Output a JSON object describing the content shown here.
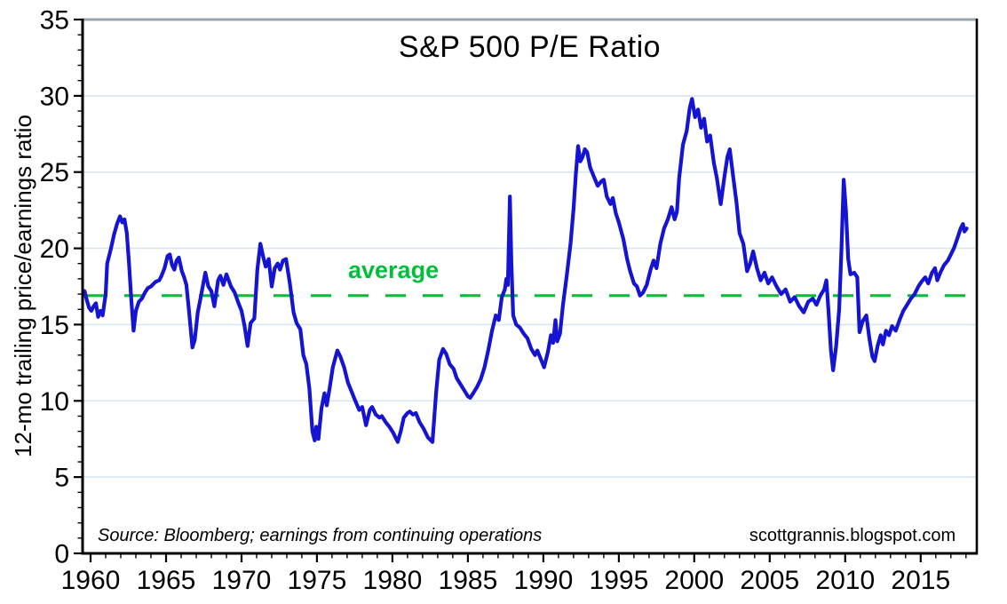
{
  "chart_data": {
    "type": "line",
    "title": "S&P 500 P/E Ratio",
    "ylabel": "12-mo trailing price/earnings ratio",
    "xlabel": "",
    "x_range": [
      1959.47,
      2018.72
    ],
    "y_range": [
      0,
      35
    ],
    "x_ticks_major": [
      1960,
      1965,
      1970,
      1975,
      1980,
      1985,
      1990,
      1995,
      2000,
      2005,
      2010,
      2015
    ],
    "y_ticks_major": [
      0,
      5,
      10,
      15,
      20,
      25,
      30,
      35
    ],
    "x_minor_ticks": {
      "start": 1960,
      "end": 2018,
      "step": 1
    },
    "y_minor_ticks": {
      "start": 0,
      "end": 35,
      "step": 1
    },
    "grid_y_values": [
      5,
      10,
      15,
      20,
      25,
      30
    ],
    "grid": "horizontal-only",
    "legend": "none",
    "average_line": {
      "value": 16.9,
      "label": "average",
      "style": "dashed"
    },
    "annotations": {
      "source": "Source: Bloomberg; earnings from continuing operations",
      "website": "scottgrannis.blogspot.com"
    },
    "colors": {
      "line": "#1414d2",
      "average": "#00c03a",
      "grid": "#d6e6f2",
      "frame": "#000000",
      "frame_top": "#98a7b0",
      "text": "#000000",
      "background": "#ffffff"
    },
    "series": [
      {
        "name": "S&P 500 12-mo trailing P/E ratio",
        "color": "#1414d2",
        "points": [
          [
            1959.6,
            17.2
          ],
          [
            1959.75,
            16.6
          ],
          [
            1959.9,
            16.1
          ],
          [
            1960.05,
            15.9
          ],
          [
            1960.2,
            16.2
          ],
          [
            1960.35,
            16.4
          ],
          [
            1960.5,
            15.5
          ],
          [
            1960.65,
            15.9
          ],
          [
            1960.8,
            15.6
          ],
          [
            1961.0,
            17.0
          ],
          [
            1961.1,
            19.0
          ],
          [
            1961.35,
            20.0
          ],
          [
            1961.55,
            20.9
          ],
          [
            1961.75,
            21.6
          ],
          [
            1961.95,
            22.1
          ],
          [
            1962.1,
            21.7
          ],
          [
            1962.25,
            21.9
          ],
          [
            1962.4,
            21.0
          ],
          [
            1962.55,
            19.0
          ],
          [
            1962.7,
            16.6
          ],
          [
            1962.85,
            14.6
          ],
          [
            1963.0,
            15.9
          ],
          [
            1963.2,
            16.5
          ],
          [
            1963.4,
            16.7
          ],
          [
            1963.6,
            17.1
          ],
          [
            1963.8,
            17.4
          ],
          [
            1964.0,
            17.5
          ],
          [
            1964.3,
            17.8
          ],
          [
            1964.55,
            17.9
          ],
          [
            1964.7,
            18.2
          ],
          [
            1964.9,
            18.7
          ],
          [
            1965.1,
            19.5
          ],
          [
            1965.25,
            19.6
          ],
          [
            1965.4,
            18.9
          ],
          [
            1965.55,
            18.6
          ],
          [
            1965.7,
            19.2
          ],
          [
            1965.85,
            19.4
          ],
          [
            1966.05,
            18.5
          ],
          [
            1966.2,
            18.1
          ],
          [
            1966.35,
            17.6
          ],
          [
            1966.5,
            16.1
          ],
          [
            1966.75,
            13.5
          ],
          [
            1966.9,
            14.0
          ],
          [
            1967.1,
            15.8
          ],
          [
            1967.3,
            16.8
          ],
          [
            1967.6,
            18.4
          ],
          [
            1967.8,
            17.5
          ],
          [
            1968.0,
            17.2
          ],
          [
            1968.2,
            16.2
          ],
          [
            1968.45,
            17.9
          ],
          [
            1968.6,
            18.2
          ],
          [
            1968.8,
            17.6
          ],
          [
            1969.0,
            18.3
          ],
          [
            1969.3,
            17.5
          ],
          [
            1969.55,
            17.1
          ],
          [
            1969.8,
            16.4
          ],
          [
            1970.0,
            15.9
          ],
          [
            1970.2,
            14.9
          ],
          [
            1970.4,
            13.6
          ],
          [
            1970.6,
            15.1
          ],
          [
            1970.85,
            15.4
          ],
          [
            1971.05,
            18.6
          ],
          [
            1971.25,
            20.3
          ],
          [
            1971.45,
            19.4
          ],
          [
            1971.6,
            18.8
          ],
          [
            1971.8,
            19.3
          ],
          [
            1972.0,
            17.5
          ],
          [
            1972.2,
            18.7
          ],
          [
            1972.4,
            19.0
          ],
          [
            1972.55,
            18.6
          ],
          [
            1972.75,
            19.2
          ],
          [
            1972.95,
            19.3
          ],
          [
            1973.2,
            17.7
          ],
          [
            1973.45,
            15.8
          ],
          [
            1973.65,
            15.1
          ],
          [
            1973.9,
            14.7
          ],
          [
            1974.1,
            13.0
          ],
          [
            1974.3,
            12.4
          ],
          [
            1974.5,
            10.8
          ],
          [
            1974.7,
            8.0
          ],
          [
            1974.85,
            7.4
          ],
          [
            1974.95,
            8.3
          ],
          [
            1975.1,
            7.5
          ],
          [
            1975.3,
            9.5
          ],
          [
            1975.5,
            10.5
          ],
          [
            1975.65,
            9.7
          ],
          [
            1975.85,
            10.9
          ],
          [
            1976.05,
            12.2
          ],
          [
            1976.35,
            13.3
          ],
          [
            1976.55,
            12.9
          ],
          [
            1976.8,
            12.2
          ],
          [
            1977.05,
            11.2
          ],
          [
            1977.3,
            10.6
          ],
          [
            1977.5,
            10.1
          ],
          [
            1977.8,
            9.4
          ],
          [
            1978.0,
            9.6
          ],
          [
            1978.25,
            8.4
          ],
          [
            1978.5,
            9.4
          ],
          [
            1978.65,
            9.6
          ],
          [
            1978.9,
            9.1
          ],
          [
            1979.15,
            8.9
          ],
          [
            1979.3,
            9.0
          ],
          [
            1979.55,
            8.6
          ],
          [
            1979.8,
            8.3
          ],
          [
            1980.05,
            7.9
          ],
          [
            1980.35,
            7.3
          ],
          [
            1980.55,
            8.0
          ],
          [
            1980.75,
            8.9
          ],
          [
            1981.0,
            9.2
          ],
          [
            1981.15,
            9.3
          ],
          [
            1981.35,
            9.1
          ],
          [
            1981.55,
            9.2
          ],
          [
            1981.8,
            8.6
          ],
          [
            1982.05,
            8.2
          ],
          [
            1982.35,
            7.6
          ],
          [
            1982.65,
            7.3
          ],
          [
            1982.9,
            10.6
          ],
          [
            1983.1,
            12.7
          ],
          [
            1983.35,
            13.4
          ],
          [
            1983.55,
            13.1
          ],
          [
            1983.8,
            12.4
          ],
          [
            1984.05,
            12.1
          ],
          [
            1984.25,
            11.5
          ],
          [
            1984.5,
            11.1
          ],
          [
            1984.75,
            10.7
          ],
          [
            1985.0,
            10.3
          ],
          [
            1985.15,
            10.2
          ],
          [
            1985.35,
            10.5
          ],
          [
            1985.6,
            10.9
          ],
          [
            1985.85,
            11.4
          ],
          [
            1986.1,
            12.2
          ],
          [
            1986.35,
            13.3
          ],
          [
            1986.6,
            14.6
          ],
          [
            1986.85,
            15.6
          ],
          [
            1987.05,
            15.3
          ],
          [
            1987.25,
            16.8
          ],
          [
            1987.45,
            17.3
          ],
          [
            1987.55,
            18.0
          ],
          [
            1987.65,
            17.6
          ],
          [
            1987.78,
            23.4
          ],
          [
            1987.88,
            19.0
          ],
          [
            1988.0,
            15.6
          ],
          [
            1988.2,
            15.0
          ],
          [
            1988.45,
            14.8
          ],
          [
            1988.7,
            14.4
          ],
          [
            1988.95,
            14.1
          ],
          [
            1989.2,
            13.4
          ],
          [
            1989.45,
            13.0
          ],
          [
            1989.6,
            13.3
          ],
          [
            1989.85,
            12.7
          ],
          [
            1990.05,
            12.2
          ],
          [
            1990.3,
            13.2
          ],
          [
            1990.5,
            14.3
          ],
          [
            1990.65,
            13.8
          ],
          [
            1990.8,
            15.3
          ],
          [
            1990.92,
            13.9
          ],
          [
            1991.1,
            14.4
          ],
          [
            1991.3,
            16.3
          ],
          [
            1991.55,
            18.2
          ],
          [
            1991.8,
            20.3
          ],
          [
            1992.0,
            22.6
          ],
          [
            1992.15,
            24.8
          ],
          [
            1992.3,
            26.7
          ],
          [
            1992.45,
            25.7
          ],
          [
            1992.6,
            26.0
          ],
          [
            1992.75,
            26.5
          ],
          [
            1992.9,
            26.3
          ],
          [
            1993.1,
            25.3
          ],
          [
            1993.35,
            24.7
          ],
          [
            1993.6,
            24.1
          ],
          [
            1993.85,
            24.4
          ],
          [
            1994.0,
            24.5
          ],
          [
            1994.2,
            23.4
          ],
          [
            1994.45,
            22.9
          ],
          [
            1994.6,
            23.3
          ],
          [
            1994.8,
            22.3
          ],
          [
            1995.0,
            21.7
          ],
          [
            1995.3,
            20.6
          ],
          [
            1995.55,
            19.3
          ],
          [
            1995.75,
            18.5
          ],
          [
            1996.0,
            17.7
          ],
          [
            1996.2,
            17.5
          ],
          [
            1996.4,
            16.9
          ],
          [
            1996.6,
            17.1
          ],
          [
            1996.85,
            17.6
          ],
          [
            1997.1,
            18.6
          ],
          [
            1997.3,
            19.2
          ],
          [
            1997.5,
            18.7
          ],
          [
            1997.75,
            20.3
          ],
          [
            1998.0,
            21.3
          ],
          [
            1998.25,
            21.9
          ],
          [
            1998.5,
            22.7
          ],
          [
            1998.7,
            21.9
          ],
          [
            1998.85,
            22.4
          ],
          [
            1999.0,
            24.6
          ],
          [
            1999.25,
            26.8
          ],
          [
            1999.5,
            27.7
          ],
          [
            1999.7,
            29.2
          ],
          [
            1999.85,
            29.8
          ],
          [
            2000.05,
            28.6
          ],
          [
            2000.25,
            29.1
          ],
          [
            2000.45,
            27.9
          ],
          [
            2000.65,
            28.5
          ],
          [
            2000.85,
            27.0
          ],
          [
            2001.05,
            27.4
          ],
          [
            2001.3,
            25.6
          ],
          [
            2001.5,
            24.6
          ],
          [
            2001.75,
            22.9
          ],
          [
            2002.0,
            24.7
          ],
          [
            2002.2,
            26.0
          ],
          [
            2002.35,
            26.5
          ],
          [
            2002.55,
            24.9
          ],
          [
            2002.8,
            23.0
          ],
          [
            2003.0,
            21.0
          ],
          [
            2003.25,
            20.3
          ],
          [
            2003.5,
            18.5
          ],
          [
            2003.7,
            19.0
          ],
          [
            2003.9,
            19.8
          ],
          [
            2004.15,
            18.7
          ],
          [
            2004.4,
            17.9
          ],
          [
            2004.65,
            18.4
          ],
          [
            2004.9,
            17.7
          ],
          [
            2005.15,
            18.1
          ],
          [
            2005.45,
            17.5
          ],
          [
            2005.75,
            17.0
          ],
          [
            2006.05,
            17.3
          ],
          [
            2006.35,
            16.5
          ],
          [
            2006.65,
            16.8
          ],
          [
            2006.95,
            16.2
          ],
          [
            2007.25,
            15.8
          ],
          [
            2007.55,
            16.5
          ],
          [
            2007.85,
            16.7
          ],
          [
            2008.1,
            16.3
          ],
          [
            2008.35,
            16.9
          ],
          [
            2008.6,
            17.3
          ],
          [
            2008.75,
            17.9
          ],
          [
            2008.9,
            15.8
          ],
          [
            2009.05,
            13.3
          ],
          [
            2009.2,
            12.0
          ],
          [
            2009.4,
            13.6
          ],
          [
            2009.6,
            16.0
          ],
          [
            2009.75,
            19.8
          ],
          [
            2009.9,
            24.5
          ],
          [
            2010.05,
            22.5
          ],
          [
            2010.2,
            19.3
          ],
          [
            2010.35,
            18.3
          ],
          [
            2010.6,
            18.4
          ],
          [
            2010.8,
            18.1
          ],
          [
            2010.95,
            14.5
          ],
          [
            2011.15,
            15.2
          ],
          [
            2011.4,
            15.6
          ],
          [
            2011.6,
            14.1
          ],
          [
            2011.8,
            12.9
          ],
          [
            2011.95,
            12.6
          ],
          [
            2012.15,
            13.6
          ],
          [
            2012.35,
            14.3
          ],
          [
            2012.5,
            13.7
          ],
          [
            2012.7,
            14.6
          ],
          [
            2012.9,
            14.3
          ],
          [
            2013.1,
            14.9
          ],
          [
            2013.35,
            14.6
          ],
          [
            2013.6,
            15.3
          ],
          [
            2013.85,
            15.9
          ],
          [
            2014.1,
            16.3
          ],
          [
            2014.35,
            16.7
          ],
          [
            2014.6,
            17.0
          ],
          [
            2014.85,
            17.5
          ],
          [
            2015.05,
            17.8
          ],
          [
            2015.3,
            18.1
          ],
          [
            2015.5,
            17.7
          ],
          [
            2015.75,
            18.4
          ],
          [
            2015.95,
            18.7
          ],
          [
            2016.1,
            17.9
          ],
          [
            2016.3,
            18.4
          ],
          [
            2016.55,
            18.9
          ],
          [
            2016.8,
            19.2
          ],
          [
            2017.0,
            19.6
          ],
          [
            2017.2,
            20.0
          ],
          [
            2017.45,
            20.7
          ],
          [
            2017.65,
            21.3
          ],
          [
            2017.8,
            21.6
          ],
          [
            2017.9,
            21.1
          ],
          [
            2018.05,
            21.3
          ]
        ]
      }
    ]
  }
}
